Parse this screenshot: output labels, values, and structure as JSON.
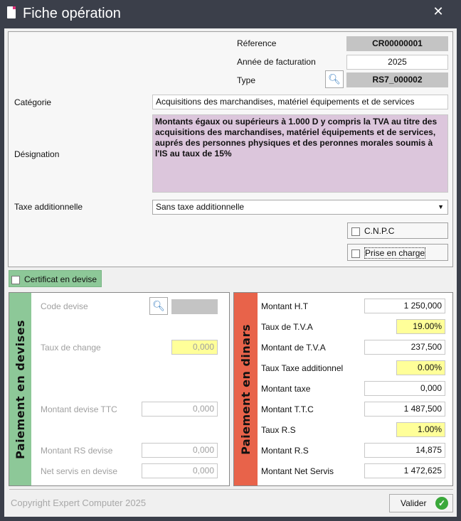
{
  "window": {
    "title": "Fiche opération",
    "close": "✕"
  },
  "header": {
    "reference_label": "Réference",
    "reference_value": "CR00000001",
    "annee_label": "Année de facturation",
    "annee_value": "2025",
    "type_label": "Type",
    "type_value": "RS7_000002",
    "categorie_label": "Catégorie",
    "categorie_value": "Acquisitions des marchandises, matériel équipements et de services",
    "designation_label": "Désignation",
    "designation_value": "Montants égaux ou supérieurs à 1.000 D y compris la TVA au titre des acquisitions des marchandises, matériel équipements et de services, auprés des personnes physiques et des peronnes morales soumis à l'IS au taux de 15%",
    "taxe_label": "Taxe additionnelle",
    "taxe_value": "Sans taxe additionnelle",
    "cnpc_label": "C.N.P.C",
    "cnpc_checked": false,
    "prise_label": "Prise en charge",
    "prise_checked": false
  },
  "certificat": {
    "label": "Certificat en devise",
    "checked": false
  },
  "devises": {
    "title": "Paiement en devises",
    "code_label": "Code devise",
    "code_value": "",
    "taux_label": "Taux de change",
    "taux_value": "0,000",
    "ttc_label": "Montant devise TTC",
    "ttc_value": "0,000",
    "rs_label": "Montant RS devise",
    "rs_value": "0,000",
    "net_label": "Net servis en devise",
    "net_value": "0,000"
  },
  "dinars": {
    "title": "Paiement en dinars",
    "rows": [
      {
        "label": "Montant H.T",
        "value": "1 250,000"
      },
      {
        "label": "Taux de T.V.A",
        "value": "19.00%"
      },
      {
        "label": "Montant de T.V.A",
        "value": "237,500"
      },
      {
        "label": "Taux Taxe additionnel",
        "value": "0.00%"
      },
      {
        "label": "Montant taxe",
        "value": "0,000"
      },
      {
        "label": "Montant T.T.C",
        "value": "1 487,500"
      },
      {
        "label": "Taux R.S",
        "value": "1.00%"
      },
      {
        "label": "Montant R.S",
        "value": "14,875"
      },
      {
        "label": "Montant Net Servis",
        "value": "1 472,625"
      }
    ]
  },
  "footer": {
    "copyright": "Copyright Expert Computer 2025",
    "valider": "Valider"
  },
  "colors": {
    "green": "#8dc898",
    "red": "#e8634a",
    "yellow": "#ffff99",
    "designation_bg": "#dcc6dc"
  }
}
